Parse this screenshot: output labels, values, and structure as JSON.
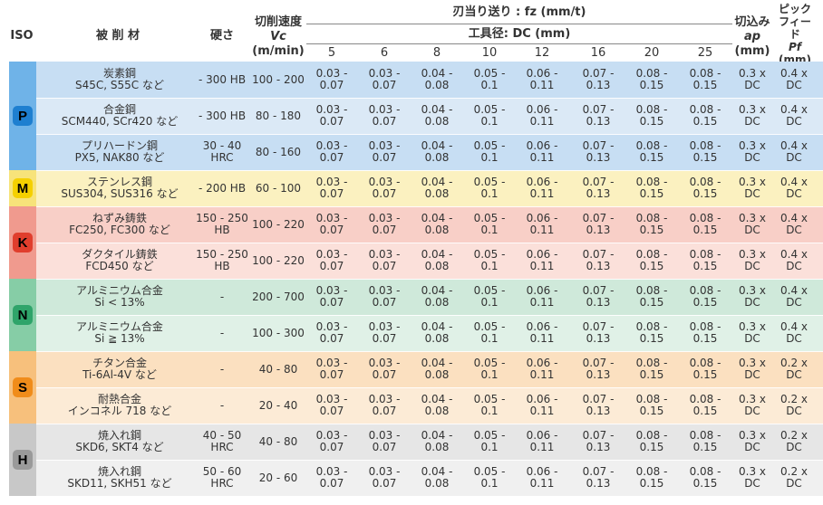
{
  "header": {
    "iso": "ISO",
    "material": "被 削 材",
    "hardness": "硬さ",
    "speed_title": "切削速度",
    "speed_symbol": "Vc",
    "speed_unit": "(m/min)",
    "feed_title": "刃当り送り : fz (mm/t)",
    "dia_title": "工具径: DC (mm)",
    "sizes": [
      "5",
      "6",
      "8",
      "10",
      "12",
      "16",
      "20",
      "25"
    ],
    "depth_title": "切込み",
    "depth_symbol": "ap",
    "depth_unit": "(mm)",
    "pick_title1": "ピック",
    "pick_title2": "フィード",
    "pick_symbol": "Pf",
    "pick_unit": "(mm)"
  },
  "groups": [
    {
      "letter": "P",
      "badge_color": "#1e7fd0",
      "block_color": "#6fb3e8",
      "stripe_colors": [
        "#c7def3",
        "#dbe9f6"
      ]
    },
    {
      "letter": "M",
      "badge_color": "#f5d000",
      "block_color": "#f7e37a",
      "stripe_colors": [
        "#fbf1c0"
      ]
    },
    {
      "letter": "K",
      "badge_color": "#e03e2d",
      "block_color": "#f09a8e",
      "stripe_colors": [
        "#f8cfc7",
        "#fbe0da"
      ]
    },
    {
      "letter": "N",
      "badge_color": "#2fa46a",
      "block_color": "#86cda6",
      "stripe_colors": [
        "#cfe9da",
        "#e0f1e7"
      ]
    },
    {
      "letter": "S",
      "badge_color": "#f08c1a",
      "block_color": "#f7c07c",
      "stripe_colors": [
        "#fbe0c0",
        "#fcebd6"
      ]
    },
    {
      "letter": "H",
      "badge_color": "#9a9a9a",
      "block_color": "#c8c8c8",
      "stripe_colors": [
        "#e6e6e6",
        "#f0f0f0"
      ]
    }
  ],
  "rows": [
    {
      "group": 0,
      "mat1": "炭素鋼",
      "mat2": "S45C, S55C など",
      "hard1": "- 300 HB",
      "hard2": "",
      "vc": "100 - 200",
      "fz": [
        [
          "0.03 -",
          "0.07"
        ],
        [
          "0.03 -",
          "0.07"
        ],
        [
          "0.04 -",
          "0.08"
        ],
        [
          "0.05 -",
          "0.1"
        ],
        [
          "0.06 -",
          "0.11"
        ],
        [
          "0.07 -",
          "0.13"
        ],
        [
          "0.08 -",
          "0.15"
        ],
        [
          "0.08 -",
          "0.15"
        ]
      ],
      "ap": [
        "0.3 x",
        "DC"
      ],
      "pf": [
        "0.4 x",
        "DC"
      ]
    },
    {
      "group": 0,
      "mat1": "合金鋼",
      "mat2": "SCM440, SCr420 など",
      "hard1": "- 300 HB",
      "hard2": "",
      "vc": "80 - 180",
      "fz": [
        [
          "0.03 -",
          "0.07"
        ],
        [
          "0.03 -",
          "0.07"
        ],
        [
          "0.04 -",
          "0.08"
        ],
        [
          "0.05 -",
          "0.1"
        ],
        [
          "0.06 -",
          "0.11"
        ],
        [
          "0.07 -",
          "0.13"
        ],
        [
          "0.08 -",
          "0.15"
        ],
        [
          "0.08 -",
          "0.15"
        ]
      ],
      "ap": [
        "0.3 x",
        "DC"
      ],
      "pf": [
        "0.4 x",
        "DC"
      ]
    },
    {
      "group": 0,
      "mat1": "プリハードン鋼",
      "mat2": "PX5, NAK80 など",
      "hard1": "30 - 40",
      "hard2": "HRC",
      "vc": "80 - 160",
      "fz": [
        [
          "0.03 -",
          "0.07"
        ],
        [
          "0.03 -",
          "0.07"
        ],
        [
          "0.04 -",
          "0.08"
        ],
        [
          "0.05 -",
          "0.1"
        ],
        [
          "0.06 -",
          "0.11"
        ],
        [
          "0.07 -",
          "0.13"
        ],
        [
          "0.08 -",
          "0.15"
        ],
        [
          "0.08 -",
          "0.15"
        ]
      ],
      "ap": [
        "0.3 x",
        "DC"
      ],
      "pf": [
        "0.4 x",
        "DC"
      ]
    },
    {
      "group": 1,
      "mat1": "ステンレス鋼",
      "mat2": "SUS304, SUS316 など",
      "hard1": "- 200 HB",
      "hard2": "",
      "vc": "60 - 100",
      "fz": [
        [
          "0.03 -",
          "0.07"
        ],
        [
          "0.03 -",
          "0.07"
        ],
        [
          "0.04 -",
          "0.08"
        ],
        [
          "0.05 -",
          "0.1"
        ],
        [
          "0.06 -",
          "0.11"
        ],
        [
          "0.07 -",
          "0.13"
        ],
        [
          "0.08 -",
          "0.15"
        ],
        [
          "0.08 -",
          "0.15"
        ]
      ],
      "ap": [
        "0.3 x",
        "DC"
      ],
      "pf": [
        "0.4 x",
        "DC"
      ]
    },
    {
      "group": 2,
      "mat1": "ねずみ鋳鉄",
      "mat2": "FC250, FC300 など",
      "hard1": "150 - 250",
      "hard2": "HB",
      "vc": "100 - 220",
      "fz": [
        [
          "0.03 -",
          "0.07"
        ],
        [
          "0.03 -",
          "0.07"
        ],
        [
          "0.04 -",
          "0.08"
        ],
        [
          "0.05 -",
          "0.1"
        ],
        [
          "0.06 -",
          "0.11"
        ],
        [
          "0.07 -",
          "0.13"
        ],
        [
          "0.08 -",
          "0.15"
        ],
        [
          "0.08 -",
          "0.15"
        ]
      ],
      "ap": [
        "0.3 x",
        "DC"
      ],
      "pf": [
        "0.4 x",
        "DC"
      ]
    },
    {
      "group": 2,
      "mat1": "ダクタイル鋳鉄",
      "mat2": "FCD450 など",
      "hard1": "150 - 250",
      "hard2": "HB",
      "vc": "100 - 220",
      "fz": [
        [
          "0.03 -",
          "0.07"
        ],
        [
          "0.03 -",
          "0.07"
        ],
        [
          "0.04 -",
          "0.08"
        ],
        [
          "0.05 -",
          "0.1"
        ],
        [
          "0.06 -",
          "0.11"
        ],
        [
          "0.07 -",
          "0.13"
        ],
        [
          "0.08 -",
          "0.15"
        ],
        [
          "0.08 -",
          "0.15"
        ]
      ],
      "ap": [
        "0.3 x",
        "DC"
      ],
      "pf": [
        "0.4 x",
        "DC"
      ]
    },
    {
      "group": 3,
      "mat1": "アルミニウム合金",
      "mat2": "Si < 13%",
      "hard1": "-",
      "hard2": "",
      "vc": "200 - 700",
      "fz": [
        [
          "0.03 -",
          "0.07"
        ],
        [
          "0.03 -",
          "0.07"
        ],
        [
          "0.04 -",
          "0.08"
        ],
        [
          "0.05 -",
          "0.1"
        ],
        [
          "0.06 -",
          "0.11"
        ],
        [
          "0.07 -",
          "0.13"
        ],
        [
          "0.08 -",
          "0.15"
        ],
        [
          "0.08 -",
          "0.15"
        ]
      ],
      "ap": [
        "0.3 x",
        "DC"
      ],
      "pf": [
        "0.4 x",
        "DC"
      ]
    },
    {
      "group": 3,
      "mat1": "アルミニウム合金",
      "mat2": "Si ≧ 13%",
      "hard1": "-",
      "hard2": "",
      "vc": "100 - 300",
      "fz": [
        [
          "0.03 -",
          "0.07"
        ],
        [
          "0.03 -",
          "0.07"
        ],
        [
          "0.04 -",
          "0.08"
        ],
        [
          "0.05 -",
          "0.1"
        ],
        [
          "0.06 -",
          "0.11"
        ],
        [
          "0.07 -",
          "0.13"
        ],
        [
          "0.08 -",
          "0.15"
        ],
        [
          "0.08 -",
          "0.15"
        ]
      ],
      "ap": [
        "0.3 x",
        "DC"
      ],
      "pf": [
        "0.4 x",
        "DC"
      ]
    },
    {
      "group": 4,
      "mat1": "チタン合金",
      "mat2": "Ti-6Al-4V など",
      "hard1": "-",
      "hard2": "",
      "vc": "40 - 80",
      "fz": [
        [
          "0.03 -",
          "0.07"
        ],
        [
          "0.03 -",
          "0.07"
        ],
        [
          "0.04 -",
          "0.08"
        ],
        [
          "0.05 -",
          "0.1"
        ],
        [
          "0.06 -",
          "0.11"
        ],
        [
          "0.07 -",
          "0.13"
        ],
        [
          "0.08 -",
          "0.15"
        ],
        [
          "0.08 -",
          "0.15"
        ]
      ],
      "ap": [
        "0.3 x",
        "DC"
      ],
      "pf": [
        "0.2 x",
        "DC"
      ]
    },
    {
      "group": 4,
      "mat1": "耐熱合金",
      "mat2": "インコネル 718 など",
      "hard1": "-",
      "hard2": "",
      "vc": "20 - 40",
      "fz": [
        [
          "0.03 -",
          "0.07"
        ],
        [
          "0.03 -",
          "0.07"
        ],
        [
          "0.04 -",
          "0.08"
        ],
        [
          "0.05 -",
          "0.1"
        ],
        [
          "0.06 -",
          "0.11"
        ],
        [
          "0.07 -",
          "0.13"
        ],
        [
          "0.08 -",
          "0.15"
        ],
        [
          "0.08 -",
          "0.15"
        ]
      ],
      "ap": [
        "0.3 x",
        "DC"
      ],
      "pf": [
        "0.2 x",
        "DC"
      ]
    },
    {
      "group": 5,
      "mat1": "焼入れ鋼",
      "mat2": "SKD6, SKT4 など",
      "hard1": "40 - 50",
      "hard2": "HRC",
      "vc": "40 - 80",
      "fz": [
        [
          "0.03 -",
          "0.07"
        ],
        [
          "0.03 -",
          "0.07"
        ],
        [
          "0.04 -",
          "0.08"
        ],
        [
          "0.05 -",
          "0.1"
        ],
        [
          "0.06 -",
          "0.11"
        ],
        [
          "0.07 -",
          "0.13"
        ],
        [
          "0.08 -",
          "0.15"
        ],
        [
          "0.08 -",
          "0.15"
        ]
      ],
      "ap": [
        "0.3 x",
        "DC"
      ],
      "pf": [
        "0.2 x",
        "DC"
      ]
    },
    {
      "group": 5,
      "mat1": "焼入れ鋼",
      "mat2": "SKD11, SKH51 など",
      "hard1": "50 - 60",
      "hard2": "HRC",
      "vc": "20 - 60",
      "fz": [
        [
          "0.03 -",
          "0.07"
        ],
        [
          "0.03 -",
          "0.07"
        ],
        [
          "0.04 -",
          "0.08"
        ],
        [
          "0.05 -",
          "0.1"
        ],
        [
          "0.06 -",
          "0.11"
        ],
        [
          "0.07 -",
          "0.13"
        ],
        [
          "0.08 -",
          "0.15"
        ],
        [
          "0.08 -",
          "0.15"
        ]
      ],
      "ap": [
        "0.3 x",
        "DC"
      ],
      "pf": [
        "0.2 x",
        "DC"
      ]
    }
  ]
}
